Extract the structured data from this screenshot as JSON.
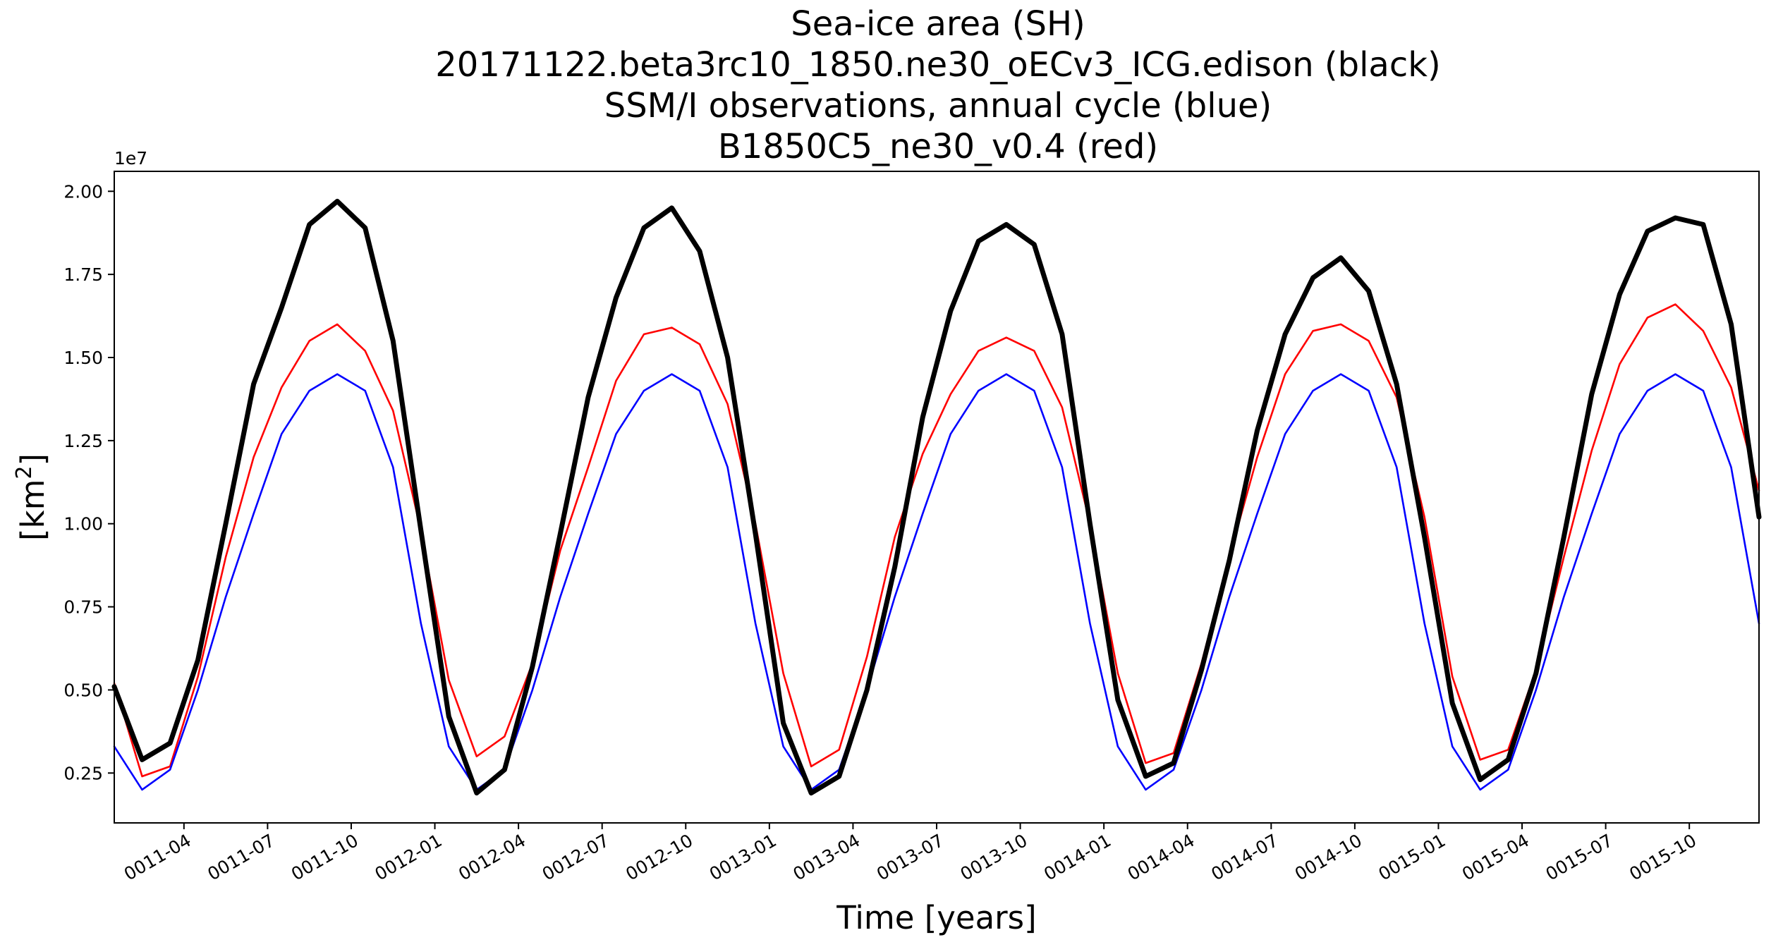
{
  "chart_data": {
    "type": "line",
    "title_lines": [
      "Sea-ice area (SH)",
      "20171122.beta3rc10_1850.ne30_oECv3_ICG.edison (black)",
      "SSM/I observations, annual cycle (blue)",
      "B1850C5_ne30_v0.4 (red)"
    ],
    "xlabel": "Time [years]",
    "ylabel": "[km²]",
    "ylabel_base": "[km",
    "ylabel_sup": "2",
    "ylabel_close": "]",
    "y_offset_label": "1e7",
    "ylim": [
      0.1,
      2.06
    ],
    "xlim": [
      0,
      59
    ],
    "yticks": [
      0.25,
      0.5,
      0.75,
      1.0,
      1.25,
      1.5,
      1.75,
      2.0
    ],
    "ytick_labels": [
      "0.25",
      "0.50",
      "0.75",
      "1.00",
      "1.25",
      "1.50",
      "1.75",
      "2.00"
    ],
    "xtick_positions": [
      2.5,
      5.5,
      8.5,
      11.5,
      14.5,
      17.5,
      20.5,
      23.5,
      26.5,
      29.5,
      32.5,
      35.5,
      38.5,
      41.5,
      44.5,
      47.5,
      50.5,
      53.5,
      56.5
    ],
    "xtick_labels": [
      "0011-04",
      "0011-07",
      "0011-10",
      "0012-01",
      "0012-04",
      "0012-07",
      "0012-10",
      "0013-01",
      "0013-04",
      "0013-07",
      "0013-10",
      "0014-01",
      "0014-04",
      "0014-07",
      "0014-10",
      "0015-01",
      "0015-04",
      "0015-07",
      "0015-10"
    ],
    "grid": false,
    "series": [
      {
        "name": "20171122.beta3rc10_1850.ne30_oECv3_ICG.edison",
        "color": "#000000",
        "width": 7,
        "values": [
          0.51,
          0.29,
          0.34,
          0.59,
          1.0,
          1.42,
          1.65,
          1.9,
          1.97,
          1.89,
          1.55,
          0.98,
          0.42,
          0.19,
          0.26,
          0.57,
          0.97,
          1.38,
          1.68,
          1.89,
          1.95,
          1.82,
          1.5,
          0.97,
          0.4,
          0.19,
          0.24,
          0.5,
          0.87,
          1.32,
          1.64,
          1.85,
          1.9,
          1.84,
          1.57,
          1.0,
          0.47,
          0.24,
          0.28,
          0.56,
          0.89,
          1.28,
          1.57,
          1.74,
          1.8,
          1.7,
          1.42,
          0.96,
          0.46,
          0.23,
          0.29,
          0.55,
          0.96,
          1.39,
          1.69,
          1.88,
          1.92,
          1.9,
          1.6,
          1.02
        ]
      },
      {
        "name": "SSM/I observations, annual cycle",
        "color": "#0000ff",
        "width": 2.6,
        "values": [
          0.33,
          0.2,
          0.26,
          0.5,
          0.78,
          1.03,
          1.27,
          1.4,
          1.45,
          1.4,
          1.17,
          0.7,
          0.33,
          0.2,
          0.26,
          0.5,
          0.78,
          1.03,
          1.27,
          1.4,
          1.45,
          1.4,
          1.17,
          0.7,
          0.33,
          0.2,
          0.26,
          0.5,
          0.78,
          1.03,
          1.27,
          1.4,
          1.45,
          1.4,
          1.17,
          0.7,
          0.33,
          0.2,
          0.26,
          0.5,
          0.78,
          1.03,
          1.27,
          1.4,
          1.45,
          1.4,
          1.17,
          0.7,
          0.33,
          0.2,
          0.26,
          0.5,
          0.78,
          1.03,
          1.27,
          1.4,
          1.45,
          1.4,
          1.17,
          0.7
        ]
      },
      {
        "name": "B1850C5_ne30_v0.4",
        "color": "#ff0000",
        "width": 2.6,
        "values": [
          0.52,
          0.24,
          0.27,
          0.54,
          0.9,
          1.2,
          1.41,
          1.55,
          1.6,
          1.52,
          1.34,
          0.98,
          0.53,
          0.3,
          0.36,
          0.58,
          0.92,
          1.17,
          1.43,
          1.57,
          1.59,
          1.54,
          1.36,
          1.0,
          0.55,
          0.27,
          0.32,
          0.6,
          0.96,
          1.21,
          1.39,
          1.52,
          1.56,
          1.52,
          1.35,
          1.0,
          0.55,
          0.28,
          0.31,
          0.58,
          0.9,
          1.2,
          1.45,
          1.58,
          1.6,
          1.55,
          1.38,
          1.02,
          0.54,
          0.29,
          0.32,
          0.56,
          0.9,
          1.22,
          1.48,
          1.62,
          1.66,
          1.58,
          1.41,
          1.1
        ]
      }
    ]
  }
}
